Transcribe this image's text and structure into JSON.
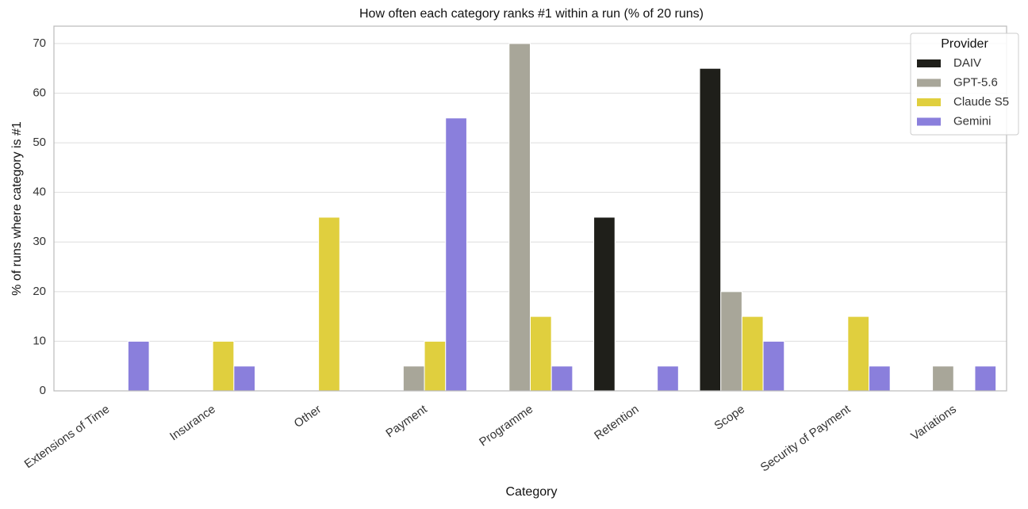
{
  "chart_data": {
    "type": "bar",
    "title": "How often each category ranks #1 within a run (% of 20 runs)",
    "x_label": "Category",
    "y_label": "% of runs where category is #1",
    "categories": [
      "Extensions of Time",
      "Insurance",
      "Other",
      "Payment",
      "Programme",
      "Retention",
      "Scope",
      "Security of Payment",
      "Variations"
    ],
    "series": [
      {
        "name": "DAIV",
        "color": "#1f1f1a",
        "values": [
          0,
          0,
          0,
          0,
          0,
          35,
          65,
          0,
          0
        ]
      },
      {
        "name": "GPT-5.6",
        "color": "#a8a699",
        "values": [
          0,
          0,
          0,
          5,
          70,
          0,
          20,
          0,
          5
        ]
      },
      {
        "name": "Claude S5",
        "color": "#e0cf3e",
        "values": [
          0,
          10,
          35,
          10,
          15,
          0,
          15,
          15,
          0
        ]
      },
      {
        "name": "Gemini",
        "color": "#8a7fdc",
        "values": [
          10,
          5,
          0,
          55,
          5,
          5,
          10,
          5,
          5
        ]
      }
    ],
    "legend_title": "Provider",
    "legend_position": "upper right",
    "ylim": [
      0,
      73.5
    ],
    "yticks": [
      0,
      10,
      20,
      30,
      40,
      50,
      60,
      70
    ],
    "grid": true
  }
}
